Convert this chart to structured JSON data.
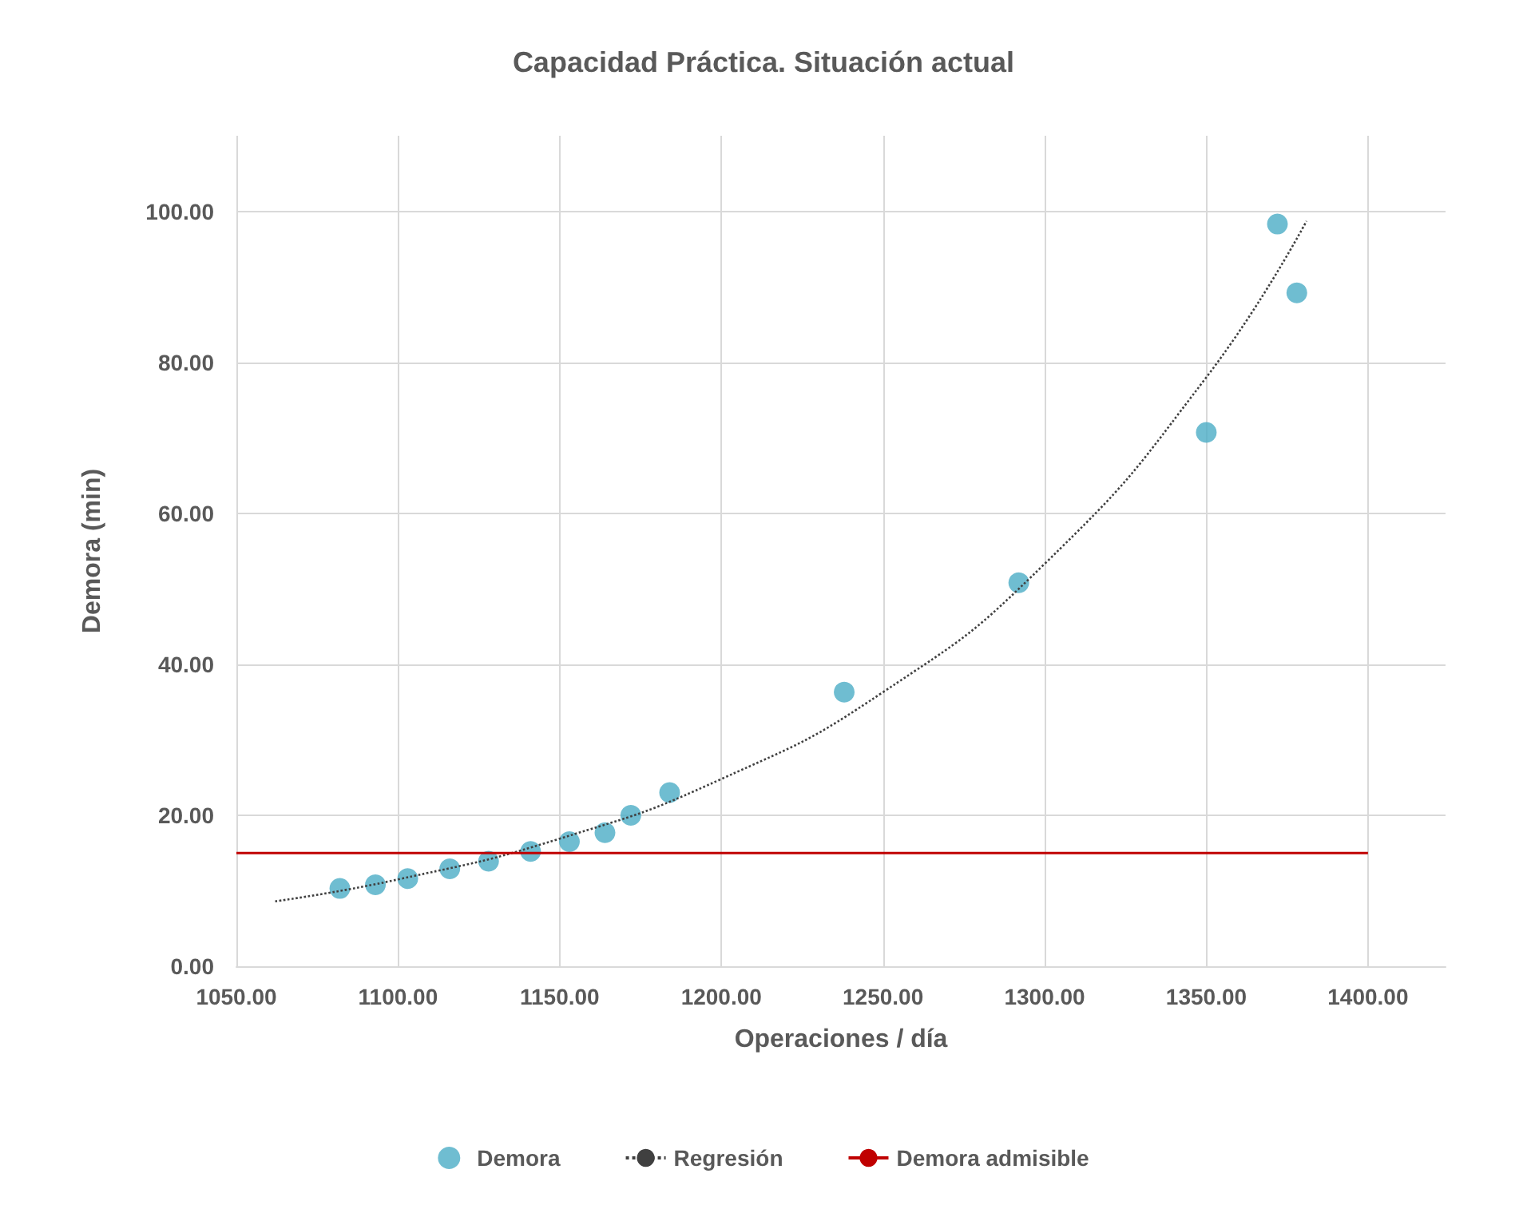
{
  "chart_data": {
    "type": "scatter",
    "title": "Capacidad Práctica. Situación actual",
    "xlabel": "Operaciones / día",
    "ylabel": "Demora (min)",
    "series": [
      {
        "name": "Demora",
        "color": "#4bacc6",
        "marker": "circle",
        "x": [
          1082,
          1093,
          1103,
          1116,
          1128,
          1141,
          1153,
          1164,
          1172,
          1184,
          1238,
          1292,
          1350,
          1372,
          1378
        ],
        "values": [
          10.3,
          10.8,
          11.6,
          12.9,
          13.9,
          15.2,
          16.5,
          17.7,
          20.0,
          23.0,
          36.3,
          50.8,
          70.7,
          98.3,
          89.2
        ]
      },
      {
        "name": "Regresión",
        "type": "line",
        "color": "#404040",
        "line_style": "dotted",
        "marker": "none",
        "x": [
          1062,
          1100,
          1150,
          1200,
          1250,
          1300,
          1350,
          1381
        ],
        "values": [
          8.6,
          11.5,
          16.9,
          24.8,
          36.3,
          53.3,
          78,
          98.7
        ]
      }
    ],
    "ref_lines": [
      {
        "axis": "y",
        "value": 15,
        "label": "Demora admisible",
        "color": "#c00000",
        "line_style": "solid"
      }
    ],
    "xlim": [
      1050,
      1424
    ],
    "xticks": [
      {
        "value": 1050,
        "label": "1050.00"
      },
      {
        "value": 1100,
        "label": "1100.00"
      },
      {
        "value": 1150,
        "label": "1150.00"
      },
      {
        "value": 1200,
        "label": "1200.00"
      },
      {
        "value": 1250,
        "label": "1250.00"
      },
      {
        "value": 1300,
        "label": "1300.00"
      },
      {
        "value": 1350,
        "label": "1350.00"
      },
      {
        "value": 1400,
        "label": "1400.00"
      }
    ],
    "ylim": [
      0,
      110
    ],
    "yticks": [
      {
        "value": 0,
        "label": "0.00"
      },
      {
        "value": 20,
        "label": "20.00"
      },
      {
        "value": 40,
        "label": "40.00"
      },
      {
        "value": 60,
        "label": "60.00"
      },
      {
        "value": 80,
        "label": "80.00"
      },
      {
        "value": 100,
        "label": "100.00"
      }
    ],
    "grid": true,
    "legend": "bottom"
  }
}
